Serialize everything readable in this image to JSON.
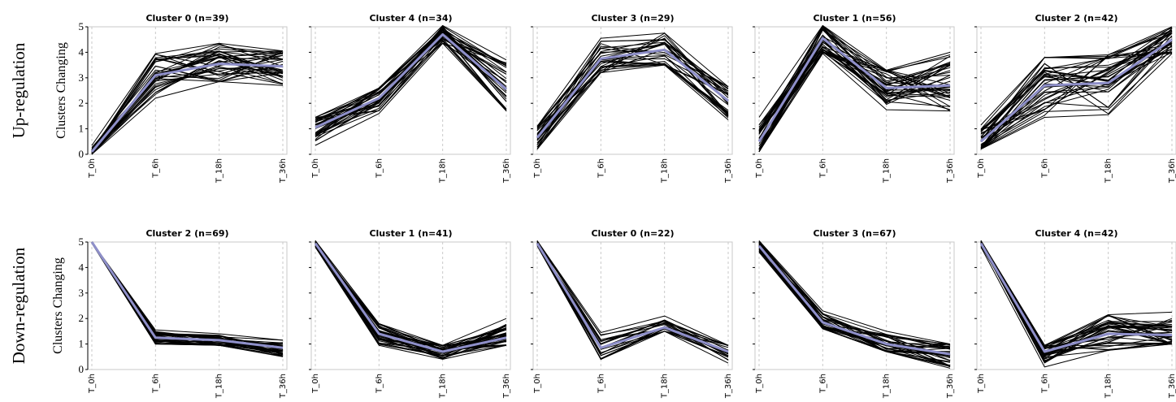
{
  "figure": {
    "row_labels": [
      "Up-regulation",
      "Down-regulation"
    ],
    "ylabel": "Clusters Changing"
  },
  "chart_data": [
    {
      "type": "line",
      "row": "Up-regulation",
      "title": "Cluster 0 (n=39)",
      "categories": [
        "T_0h",
        "T_6h",
        "T_18h",
        "T_36h"
      ],
      "ylim": [
        0,
        5
      ],
      "yticks": [
        0,
        1,
        2,
        3,
        4,
        5
      ],
      "ylabel": "Clusters Changing",
      "grid": "vertical dashed",
      "mean": [
        0.1,
        3.1,
        3.55,
        3.45
      ],
      "spread": [
        [
          0.0,
          0.35
        ],
        [
          2.2,
          3.95
        ],
        [
          2.85,
          4.35
        ],
        [
          2.7,
          4.05
        ]
      ],
      "n": 39,
      "series_color": "#000000",
      "mean_color": "#8e8fc9"
    },
    {
      "type": "line",
      "row": "Up-regulation",
      "title": "Cluster 4 (n=34)",
      "categories": [
        "T_0h",
        "T_6h",
        "T_18h",
        "T_36h"
      ],
      "ylim": [
        0,
        5
      ],
      "yticks": [
        0,
        1,
        2,
        3,
        4,
        5
      ],
      "grid": "vertical dashed",
      "mean": [
        1.05,
        2.2,
        4.7,
        2.55
      ],
      "spread": [
        [
          0.35,
          1.45
        ],
        [
          1.6,
          2.6
        ],
        [
          4.35,
          5.05
        ],
        [
          1.7,
          3.7
        ]
      ],
      "n": 34,
      "series_color": "#000000",
      "mean_color": "#8e8fc9"
    },
    {
      "type": "line",
      "row": "Up-regulation",
      "title": "Cluster 3 (n=29)",
      "categories": [
        "T_0h",
        "T_6h",
        "T_18h",
        "T_36h"
      ],
      "ylim": [
        0,
        5
      ],
      "yticks": [
        0,
        1,
        2,
        3,
        4,
        5
      ],
      "grid": "vertical dashed",
      "mean": [
        0.65,
        3.75,
        4.1,
        2.1
      ],
      "spread": [
        [
          0.2,
          1.1
        ],
        [
          3.2,
          4.55
        ],
        [
          3.5,
          4.75
        ],
        [
          1.35,
          2.65
        ]
      ],
      "n": 29,
      "series_color": "#000000",
      "mean_color": "#8e8fc9"
    },
    {
      "type": "line",
      "row": "Up-regulation",
      "title": "Cluster 1 (n=56)",
      "categories": [
        "T_0h",
        "T_6h",
        "T_18h",
        "T_36h"
      ],
      "ylim": [
        0,
        5
      ],
      "yticks": [
        0,
        1,
        2,
        3,
        4,
        5
      ],
      "grid": "vertical dashed",
      "mean": [
        0.5,
        4.55,
        2.6,
        2.7
      ],
      "spread": [
        [
          0.1,
          1.45
        ],
        [
          3.95,
          5.05
        ],
        [
          1.75,
          3.3
        ],
        [
          1.7,
          4.0
        ]
      ],
      "n": 56,
      "series_color": "#000000",
      "mean_color": "#8e8fc9"
    },
    {
      "type": "line",
      "row": "Up-regulation",
      "title": "Cluster 2 (n=42)",
      "categories": [
        "T_0h",
        "T_6h",
        "T_18h",
        "T_36h"
      ],
      "ylim": [
        0,
        5
      ],
      "yticks": [
        0,
        1,
        2,
        3,
        4,
        5
      ],
      "grid": "vertical dashed",
      "mean": [
        0.5,
        2.7,
        2.8,
        4.5
      ],
      "spread": [
        [
          0.2,
          1.15
        ],
        [
          1.45,
          3.8
        ],
        [
          1.55,
          3.9
        ],
        [
          3.95,
          5.0
        ]
      ],
      "n": 42,
      "series_color": "#000000",
      "mean_color": "#8e8fc9"
    },
    {
      "type": "line",
      "row": "Down-regulation",
      "title": "Cluster 2 (n=69)",
      "categories": [
        "T_0h",
        "T_6h",
        "T_18h",
        "T_36h"
      ],
      "ylim": [
        0,
        5
      ],
      "yticks": [
        0,
        1,
        2,
        3,
        4,
        5
      ],
      "ylabel": "Clusters Changing",
      "grid": "vertical dashed",
      "mean": [
        5.0,
        1.25,
        1.15,
        0.85
      ],
      "spread": [
        [
          4.95,
          5.0
        ],
        [
          1.0,
          1.55
        ],
        [
          0.95,
          1.4
        ],
        [
          0.5,
          1.15
        ]
      ],
      "n": 69,
      "series_color": "#000000",
      "mean_color": "#8e8fc9"
    },
    {
      "type": "line",
      "row": "Down-regulation",
      "title": "Cluster 1 (n=41)",
      "categories": [
        "T_0h",
        "T_6h",
        "T_18h",
        "T_36h"
      ],
      "ylim": [
        0,
        5
      ],
      "yticks": [
        0,
        1,
        2,
        3,
        4,
        5
      ],
      "grid": "vertical dashed",
      "mean": [
        4.95,
        1.4,
        0.7,
        1.25
      ],
      "spread": [
        [
          4.8,
          5.05
        ],
        [
          0.95,
          1.8
        ],
        [
          0.4,
          0.95
        ],
        [
          0.95,
          2.0
        ]
      ],
      "n": 41,
      "series_color": "#000000",
      "mean_color": "#8e8fc9"
    },
    {
      "type": "line",
      "row": "Down-regulation",
      "title": "Cluster 0 (n=22)",
      "categories": [
        "T_0h",
        "T_6h",
        "T_18h",
        "T_36h"
      ],
      "ylim": [
        0,
        5
      ],
      "yticks": [
        0,
        1,
        2,
        3,
        4,
        5
      ],
      "grid": "vertical dashed",
      "mean": [
        4.95,
        0.85,
        1.65,
        0.7
      ],
      "spread": [
        [
          4.85,
          5.05
        ],
        [
          0.4,
          1.45
        ],
        [
          1.5,
          2.1
        ],
        [
          0.25,
          0.95
        ]
      ],
      "n": 22,
      "series_color": "#000000",
      "mean_color": "#8e8fc9"
    },
    {
      "type": "line",
      "row": "Down-regulation",
      "title": "Cluster 3 (n=67)",
      "categories": [
        "T_0h",
        "T_6h",
        "T_18h",
        "T_36h"
      ],
      "ylim": [
        0,
        5
      ],
      "yticks": [
        0,
        1,
        2,
        3,
        4,
        5
      ],
      "grid": "vertical dashed",
      "mean": [
        4.85,
        1.85,
        1.0,
        0.6
      ],
      "spread": [
        [
          4.6,
          5.05
        ],
        [
          1.6,
          2.3
        ],
        [
          0.7,
          1.5
        ],
        [
          0.05,
          1.0
        ]
      ],
      "n": 67,
      "series_color": "#000000",
      "mean_color": "#8e8fc9"
    },
    {
      "type": "line",
      "row": "Down-regulation",
      "title": "Cluster 4 (n=42)",
      "categories": [
        "T_0h",
        "T_6h",
        "T_18h",
        "T_36h"
      ],
      "ylim": [
        0,
        5
      ],
      "yticks": [
        0,
        1,
        2,
        3,
        4,
        5
      ],
      "grid": "vertical dashed",
      "mean": [
        4.95,
        0.7,
        1.4,
        1.35
      ],
      "spread": [
        [
          4.8,
          5.05
        ],
        [
          0.1,
          0.95
        ],
        [
          0.75,
          2.15
        ],
        [
          1.0,
          2.25
        ]
      ],
      "n": 42,
      "series_color": "#000000",
      "mean_color": "#8e8fc9"
    }
  ]
}
